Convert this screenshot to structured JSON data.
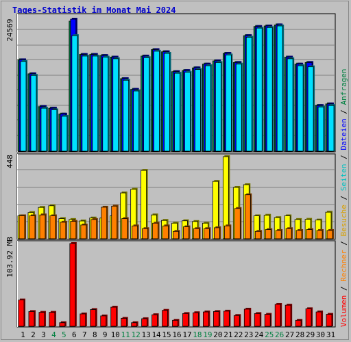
{
  "page": {
    "title": "Tages-Statistik im Monat Mai 2024"
  },
  "legend": {
    "parts": [
      {
        "text": "Anfragen",
        "color": "#008040"
      },
      {
        "text": " / ",
        "color": "#000000"
      },
      {
        "text": "Dateien",
        "color": "#0000ff"
      },
      {
        "text": " / ",
        "color": "#000000"
      },
      {
        "text": "Seiten",
        "color": "#00c0c0"
      },
      {
        "text": " / ",
        "color": "#000000"
      },
      {
        "text": "Besuche",
        "color": "#d8a000"
      },
      {
        "text": " / ",
        "color": "#000000"
      },
      {
        "text": "Rechner",
        "color": "#ff8000"
      },
      {
        "text": " / ",
        "color": "#000000"
      },
      {
        "text": "Volumen",
        "color": "#ff0000"
      }
    ]
  },
  "chart_data": [
    {
      "type": "bar",
      "ymax_label": "24569",
      "ylim": [
        0,
        24569
      ],
      "categories": [
        "1",
        "2",
        "3",
        "4",
        "5",
        "6",
        "7",
        "8",
        "9",
        "10",
        "11",
        "12",
        "13",
        "14",
        "15",
        "16",
        "17",
        "18",
        "19",
        "20",
        "21",
        "22",
        "23",
        "24",
        "25",
        "26",
        "27",
        "28",
        "29",
        "30",
        "31"
      ],
      "weekend_categories": [
        "4",
        "5",
        "11",
        "12",
        "18",
        "19",
        "25",
        "26"
      ],
      "colors": {
        "Anfragen": "#008040",
        "Dateien": "#0000ff",
        "Seiten": "#00e0ff"
      },
      "series": [
        {
          "name": "Anfragen",
          "values": [
            17000,
            14400,
            8300,
            8000,
            6900,
            24200,
            18000,
            18000,
            17800,
            17500,
            13500,
            11500,
            17700,
            18900,
            18500,
            14800,
            15000,
            15500,
            16200,
            16800,
            18200,
            16500,
            21500,
            23200,
            23300,
            23500,
            17500,
            16200,
            16500,
            8500,
            8800
          ]
        },
        {
          "name": "Dateien",
          "values": [
            17000,
            14400,
            8300,
            8000,
            6900,
            24569,
            18000,
            18000,
            17800,
            17500,
            13500,
            11500,
            17700,
            18900,
            18500,
            14800,
            15000,
            15500,
            16200,
            16800,
            18200,
            16500,
            21500,
            23200,
            23300,
            23500,
            17500,
            16200,
            16500,
            8500,
            8800
          ]
        },
        {
          "name": "Seiten",
          "values": [
            16700,
            14100,
            8000,
            7700,
            6500,
            21500,
            17700,
            17700,
            17500,
            17200,
            13200,
            11200,
            17400,
            18600,
            18200,
            14500,
            14700,
            15200,
            15900,
            16500,
            17900,
            16200,
            21200,
            22900,
            23000,
            23300,
            17200,
            15900,
            15700,
            8200,
            8500
          ]
        }
      ]
    },
    {
      "type": "bar",
      "ymax_label": "448",
      "ylim": [
        0,
        448
      ],
      "categories": [
        "1",
        "2",
        "3",
        "4",
        "5",
        "6",
        "7",
        "8",
        "9",
        "10",
        "11",
        "12",
        "13",
        "14",
        "15",
        "16",
        "17",
        "18",
        "19",
        "20",
        "21",
        "22",
        "23",
        "24",
        "25",
        "26",
        "27",
        "28",
        "29",
        "30",
        "31"
      ],
      "colors": {
        "Besuche": "#ffff00",
        "Rechner": "#ff8000"
      },
      "series": [
        {
          "name": "Besuche",
          "values": [
            125,
            143,
            171,
            180,
            110,
            105,
            97,
            113,
            113,
            125,
            250,
            270,
            373,
            130,
            100,
            85,
            98,
            94,
            85,
            313,
            448,
            280,
            295,
            125,
            128,
            115,
            125,
            105,
            106,
            102,
            145
          ]
        },
        {
          "name": "Rechner",
          "values": [
            125,
            125,
            130,
            125,
            90,
            95,
            75,
            105,
            172,
            178,
            110,
            70,
            55,
            85,
            70,
            40,
            65,
            55,
            55,
            60,
            70,
            165,
            240,
            40,
            50,
            45,
            55,
            45,
            50,
            45,
            45
          ]
        }
      ]
    },
    {
      "type": "bar",
      "ymax_label": "103.92 MB",
      "ylim": [
        0,
        103.92
      ],
      "unit": "MB",
      "categories": [
        "1",
        "2",
        "3",
        "4",
        "5",
        "6",
        "7",
        "8",
        "9",
        "10",
        "11",
        "12",
        "13",
        "14",
        "15",
        "16",
        "17",
        "18",
        "19",
        "20",
        "21",
        "22",
        "23",
        "24",
        "25",
        "26",
        "27",
        "28",
        "29",
        "30",
        "31"
      ],
      "colors": {
        "Volumen": "#ff0000"
      },
      "series": [
        {
          "name": "Volumen",
          "values": [
            33,
            18.5,
            17.5,
            17.5,
            4.5,
            103.92,
            15.5,
            21,
            13,
            24,
            10,
            4.5,
            9.5,
            14.5,
            20,
            7.5,
            16,
            17,
            18,
            18.5,
            19,
            13.5,
            21.5,
            16,
            15,
            27.5,
            26.5,
            7.5,
            22,
            18,
            15
          ]
        }
      ]
    }
  ]
}
